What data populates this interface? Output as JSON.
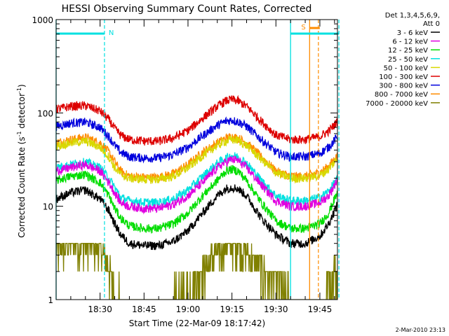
{
  "chart_data": {
    "type": "line",
    "title": "HESSI Observing Summary Count Rates, Corrected",
    "xlabel": "Start Time (22-Mar-09 18:17:42)",
    "ylabel_main": "Corrected Count Rate (s",
    "ylabel_sup1": "-1",
    "ylabel_mid": " detector",
    "ylabel_sup2": "-1",
    "ylabel_end": ")",
    "y_scale": "log",
    "ylim": [
      1,
      1000
    ],
    "y_ticks": [
      {
        "value": 1,
        "label": "1"
      },
      {
        "value": 10,
        "label": "10"
      },
      {
        "value": 100,
        "label": "100"
      },
      {
        "value": 1000,
        "label": "1000"
      }
    ],
    "x_range_minutes": [
      0,
      96
    ],
    "x_ticks": [
      {
        "minute": 15,
        "label": "18:30"
      },
      {
        "minute": 30,
        "label": "18:45"
      },
      {
        "minute": 45,
        "label": "19:00"
      },
      {
        "minute": 60,
        "label": "19:15"
      },
      {
        "minute": 75,
        "label": "19:30"
      },
      {
        "minute": 90,
        "label": "19:45"
      }
    ],
    "legend": {
      "header1": "Det 1,3,4,5,6,9,",
      "header2": "Att 0",
      "placement": "right"
    },
    "series": [
      {
        "name": "3 - 6 keV",
        "color": "#000000",
        "x": [
          0,
          5,
          10,
          15,
          18,
          20,
          22,
          25,
          30,
          35,
          40,
          45,
          50,
          55,
          58,
          60,
          62,
          65,
          70,
          75,
          80,
          85,
          90,
          93,
          95,
          97
        ],
        "y": [
          12,
          14,
          15,
          12,
          9,
          6.5,
          5,
          4,
          3.8,
          3.8,
          4.2,
          5.5,
          8.5,
          13,
          15.5,
          16,
          15.5,
          13,
          7.5,
          5,
          4,
          4,
          4.8,
          6.5,
          9,
          12
        ]
      },
      {
        "name": "6 - 12 keV",
        "color": "#e000e0",
        "x": [
          0,
          5,
          10,
          15,
          18,
          20,
          22,
          25,
          30,
          35,
          40,
          45,
          50,
          55,
          58,
          60,
          62,
          65,
          70,
          75,
          80,
          85,
          90,
          93,
          95,
          97
        ],
        "y": [
          24,
          26,
          28,
          24,
          18,
          14,
          11,
          10,
          9.5,
          9.5,
          10.5,
          13,
          18,
          26,
          30,
          32,
          31,
          26,
          17,
          11.5,
          10,
          10,
          11,
          13,
          17,
          22
        ]
      },
      {
        "name": "12 - 25 keV",
        "color": "#00dd00",
        "x": [
          0,
          5,
          10,
          15,
          18,
          20,
          22,
          25,
          30,
          35,
          40,
          45,
          50,
          55,
          58,
          60,
          62,
          65,
          70,
          75,
          80,
          85,
          90,
          93,
          95,
          97
        ],
        "y": [
          19,
          21,
          22,
          18,
          13,
          9.5,
          7.5,
          6.2,
          5.8,
          5.8,
          6.5,
          8.5,
          13,
          19,
          24,
          25,
          24,
          19,
          11,
          7,
          5.8,
          5.8,
          6.5,
          8.5,
          12,
          16
        ]
      },
      {
        "name": "25 - 50 keV",
        "color": "#00e0e0",
        "x": [
          0,
          5,
          10,
          15,
          18,
          20,
          22,
          25,
          30,
          35,
          40,
          45,
          50,
          55,
          58,
          60,
          62,
          65,
          70,
          75,
          80,
          85,
          90,
          93,
          95,
          97
        ],
        "y": [
          26,
          28,
          30,
          26,
          20,
          16,
          12.5,
          11.5,
          11,
          11,
          12,
          15,
          21,
          29,
          33,
          35,
          34,
          29,
          19,
          13,
          11.5,
          11.5,
          12.5,
          14.5,
          18,
          22
        ]
      },
      {
        "name": "50 - 100 keV",
        "color": "#d8d800",
        "x": [
          0,
          5,
          10,
          15,
          18,
          20,
          22,
          25,
          30,
          35,
          40,
          45,
          50,
          55,
          58,
          60,
          62,
          65,
          70,
          75,
          80,
          85,
          90,
          93,
          95,
          97
        ],
        "y": [
          44,
          48,
          50,
          43,
          34,
          26,
          22,
          20,
          19.5,
          19.5,
          21,
          26,
          35,
          45,
          50,
          52,
          51,
          45,
          32,
          23,
          20,
          20,
          21.5,
          25,
          30,
          36
        ]
      },
      {
        "name": "100 - 300 keV",
        "color": "#dd0000",
        "x": [
          0,
          5,
          10,
          15,
          18,
          20,
          22,
          25,
          30,
          35,
          40,
          45,
          50,
          55,
          58,
          60,
          62,
          65,
          70,
          75,
          80,
          85,
          90,
          93,
          95,
          97
        ],
        "y": [
          110,
          118,
          120,
          105,
          85,
          68,
          58,
          52,
          50,
          50,
          54,
          65,
          88,
          118,
          135,
          140,
          135,
          118,
          82,
          58,
          52,
          52,
          56,
          64,
          75,
          88
        ]
      },
      {
        "name": "300 - 800 keV",
        "color": "#0000dd",
        "x": [
          0,
          5,
          10,
          15,
          18,
          20,
          22,
          25,
          30,
          35,
          40,
          45,
          50,
          55,
          58,
          60,
          62,
          65,
          70,
          75,
          80,
          85,
          90,
          93,
          95,
          97
        ],
        "y": [
          72,
          78,
          80,
          70,
          56,
          45,
          38,
          34,
          33,
          33,
          36,
          43,
          57,
          74,
          82,
          84,
          81,
          72,
          52,
          38,
          34,
          34,
          37,
          43,
          51,
          60
        ]
      },
      {
        "name": "800 - 7000 keV",
        "color": "#ff8c00",
        "x": [
          0,
          5,
          10,
          15,
          18,
          20,
          22,
          25,
          30,
          35,
          40,
          45,
          50,
          55,
          58,
          60,
          62,
          65,
          70,
          75,
          80,
          85,
          90,
          93,
          95,
          97
        ],
        "y": [
          48,
          52,
          55,
          48,
          38,
          30,
          24,
          21,
          20.5,
          20.5,
          22.5,
          28,
          38,
          48,
          54,
          56,
          54,
          48,
          34,
          24,
          21,
          21,
          23,
          27,
          32,
          38
        ]
      },
      {
        "name": "7000 - 20000 keV",
        "color": "#808000",
        "x": [
          0,
          5,
          10,
          15,
          18,
          20,
          22,
          25,
          30,
          35,
          40,
          45,
          50,
          55,
          58,
          60,
          62,
          65,
          70,
          75,
          80,
          85,
          90,
          93,
          95,
          97
        ],
        "y": [
          3,
          4,
          4,
          3.5,
          2,
          1.2,
          1,
          1,
          1,
          1,
          1,
          1.2,
          2,
          3,
          3.8,
          4,
          3.8,
          3,
          2,
          1.5,
          1,
          1,
          1,
          1.5,
          2,
          2.5
        ]
      }
    ],
    "annotations": [
      {
        "label": "N",
        "color": "#00e0e0",
        "start_minute": 0,
        "end_minute": 16.5,
        "type": "night"
      },
      {
        "label": "S",
        "color": "#ff8c00",
        "start_minute": 86.5,
        "end_minute": 89.5,
        "type": "saa"
      },
      {
        "label": "",
        "color": "#00e0e0",
        "start_minute": 80,
        "end_minute": 96.5,
        "type": "night"
      }
    ],
    "footer_stamp": "2-Mar-2010 23:13",
    "grid": false
  }
}
